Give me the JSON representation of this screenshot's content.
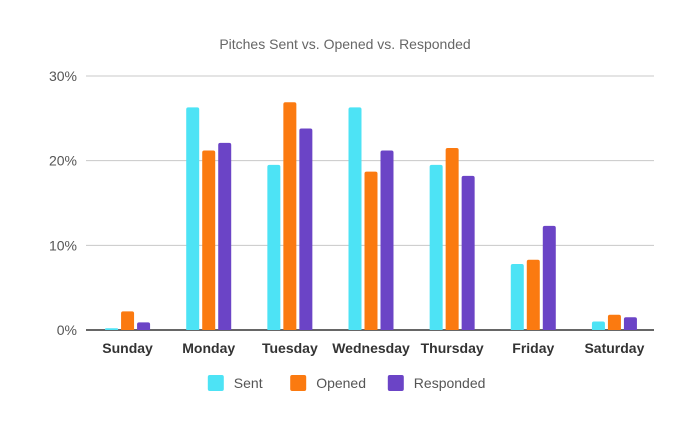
{
  "chart_data": {
    "type": "bar",
    "title": "Pitches Sent vs. Opened vs. Responded",
    "xlabel": "",
    "ylabel": "",
    "ylim": [
      0,
      30
    ],
    "yticks": [
      0,
      10,
      20,
      30
    ],
    "ytick_labels": [
      "0%",
      "10%",
      "20%",
      "30%"
    ],
    "grid": true,
    "legend_position": "bottom-center",
    "categories": [
      "Sunday",
      "Monday",
      "Tuesday",
      "Wednesday",
      "Thursday",
      "Friday",
      "Saturday"
    ],
    "series": [
      {
        "name": "Sent",
        "color": "#4de3f5",
        "values": [
          0.2,
          26.3,
          19.5,
          26.3,
          19.5,
          7.8,
          1.0
        ]
      },
      {
        "name": "Opened",
        "color": "#fb7a10",
        "values": [
          2.2,
          21.2,
          26.9,
          18.7,
          21.5,
          8.3,
          1.8
        ]
      },
      {
        "name": "Responded",
        "color": "#6b44c6",
        "values": [
          0.9,
          22.1,
          23.8,
          21.2,
          18.2,
          12.3,
          1.5
        ]
      }
    ]
  }
}
